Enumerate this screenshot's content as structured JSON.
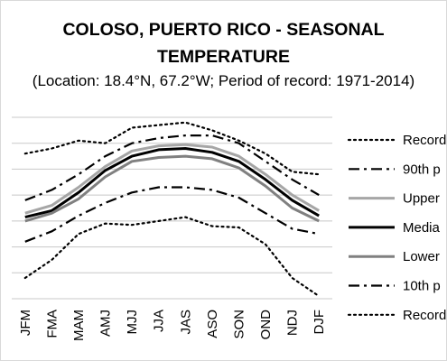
{
  "chart_data": {
    "type": "line",
    "title_line1": "COLOSO, PUERTO RICO - SEASONAL",
    "title_line2": "TEMPERATURE",
    "subtitle": "(Location: 18.4°N, 67.2°W; Period of record: 1971-2014)",
    "xlabel": "",
    "ylabel": "",
    "y_tick_labels_visible": false,
    "grid": "horizontal",
    "legend_position": "right",
    "categories": [
      "JFM",
      "FMA",
      "MAM",
      "AMJ",
      "MJJ",
      "JJA",
      "JAS",
      "ASO",
      "SON",
      "OND",
      "NDJ",
      "DJF"
    ],
    "ylim": [
      0,
      7
    ],
    "y_gridlines": [
      0,
      1,
      2,
      3,
      4,
      5,
      6,
      7
    ],
    "series": [
      {
        "name": "Record",
        "color": "#000000",
        "dash": "dot",
        "values": [
          5.6,
          5.8,
          6.1,
          6.0,
          6.6,
          6.7,
          6.8,
          6.5,
          6.1,
          5.6,
          4.9,
          4.8
        ]
      },
      {
        "name": "90th p",
        "color": "#000000",
        "dash": "dashdot",
        "values": [
          3.8,
          4.2,
          4.8,
          5.5,
          6.0,
          6.2,
          6.3,
          6.3,
          6.0,
          5.3,
          4.6,
          4.0
        ]
      },
      {
        "name": "Upper",
        "color": "#a6a6a6",
        "dash": "solid",
        "values": [
          3.3,
          3.6,
          4.3,
          5.1,
          5.7,
          5.9,
          5.95,
          5.85,
          5.5,
          4.8,
          4.0,
          3.4
        ]
      },
      {
        "name": "Media",
        "color": "#000000",
        "dash": "solid",
        "values": [
          3.15,
          3.4,
          4.1,
          4.95,
          5.5,
          5.75,
          5.8,
          5.65,
          5.3,
          4.6,
          3.8,
          3.2
        ]
      },
      {
        "name": "Lower",
        "color": "#808080",
        "dash": "solid",
        "values": [
          3.0,
          3.3,
          3.85,
          4.7,
          5.3,
          5.45,
          5.5,
          5.4,
          5.05,
          4.35,
          3.5,
          3.0
        ]
      },
      {
        "name": "10th p",
        "color": "#000000",
        "dash": "dashdot",
        "values": [
          2.2,
          2.6,
          3.2,
          3.7,
          4.1,
          4.3,
          4.3,
          4.2,
          3.9,
          3.3,
          2.7,
          2.5
        ]
      },
      {
        "name": "Record",
        "color": "#000000",
        "dash": "dot",
        "values": [
          0.8,
          1.5,
          2.5,
          2.9,
          2.85,
          3.0,
          3.15,
          2.8,
          2.75,
          2.1,
          0.8,
          0.1
        ]
      }
    ]
  }
}
